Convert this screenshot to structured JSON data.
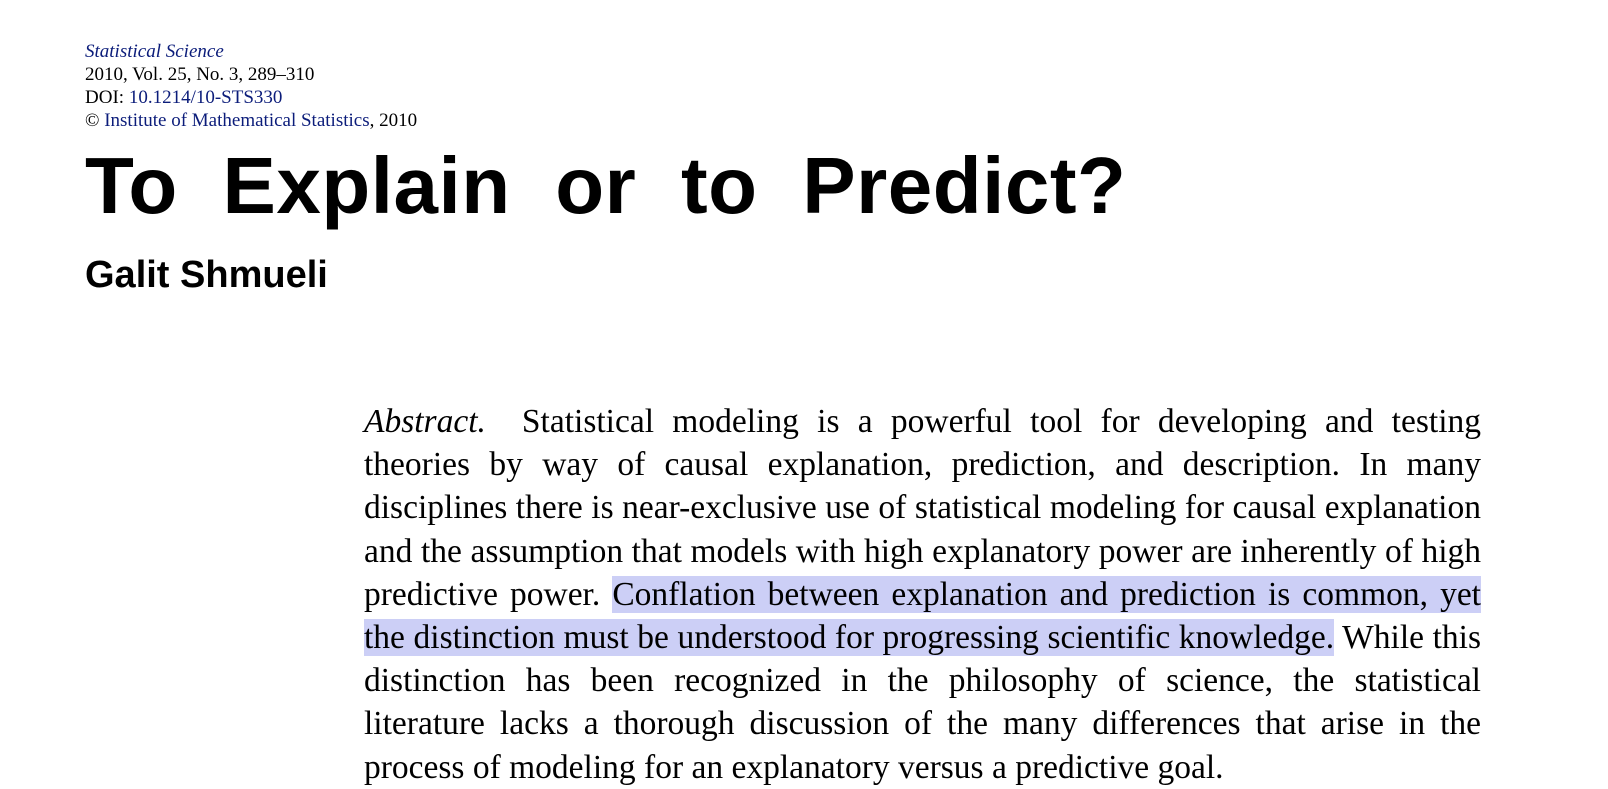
{
  "header": {
    "journal": "Statistical Science",
    "volume_info": "2010, Vol. 25, No. 3, 289–310",
    "doi_label": "DOI: ",
    "doi": "10.1214/10-STS330",
    "copyright_symbol": "© ",
    "publisher": "Institute of Mathematical Statistics",
    "copyright_year": ", 2010"
  },
  "title": "To Explain or to Predict?",
  "author": "Galit Shmueli",
  "abstract": {
    "label": "Abstract.",
    "text_before": "Statistical modeling is a powerful tool for developing and testing theories by way of causal explanation, prediction, and description. In many disciplines there is near-exclusive use of statistical modeling for causal ex­planation and the assumption that models with high explanatory power are inherently of high predictive power. ",
    "text_highlighted": "Conflation between explanation and pre­diction is common, yet the distinction must be understood for progressing scientific knowledge.",
    "text_after": " While this distinction has been recognized in the phi­losophy of science, the statistical literature lacks a thorough discussion of the many differences that arise in the process of modeling for an explanatory ver­sus a predictive goal."
  },
  "colors": {
    "link": "#0b1c7a",
    "highlight": "#cccff6"
  }
}
